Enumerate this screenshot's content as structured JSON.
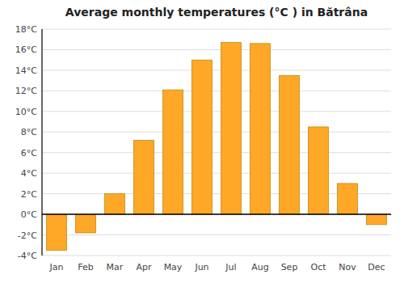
{
  "chart_data": {
    "type": "bar",
    "title": "Average monthly temperatures (°C ) in Bătrâna",
    "categories": [
      "Jan",
      "Feb",
      "Mar",
      "Apr",
      "May",
      "Jun",
      "Jul",
      "Aug",
      "Sep",
      "Oct",
      "Nov",
      "Dec"
    ],
    "values": [
      -3.5,
      -1.8,
      2.0,
      7.2,
      12.1,
      15.0,
      16.7,
      16.6,
      13.5,
      8.5,
      3.0,
      -1.0
    ],
    "color": "#FFA726",
    "ylim": [
      -4,
      18
    ],
    "yticks": [
      {
        "value": -4,
        "label": "-4°C"
      },
      {
        "value": -2,
        "label": "-2°C"
      },
      {
        "value": 0,
        "label": "0°C"
      },
      {
        "value": 2,
        "label": "2°C"
      },
      {
        "value": 4,
        "label": "4°C"
      },
      {
        "value": 6,
        "label": "6°C"
      },
      {
        "value": 8,
        "label": "8°C"
      },
      {
        "value": 10,
        "label": "10°C"
      },
      {
        "value": 12,
        "label": "12°C"
      },
      {
        "value": 14,
        "label": "14°C"
      },
      {
        "value": 16,
        "label": "16°C"
      },
      {
        "value": 18,
        "label": "18°C"
      }
    ],
    "grid": true
  }
}
